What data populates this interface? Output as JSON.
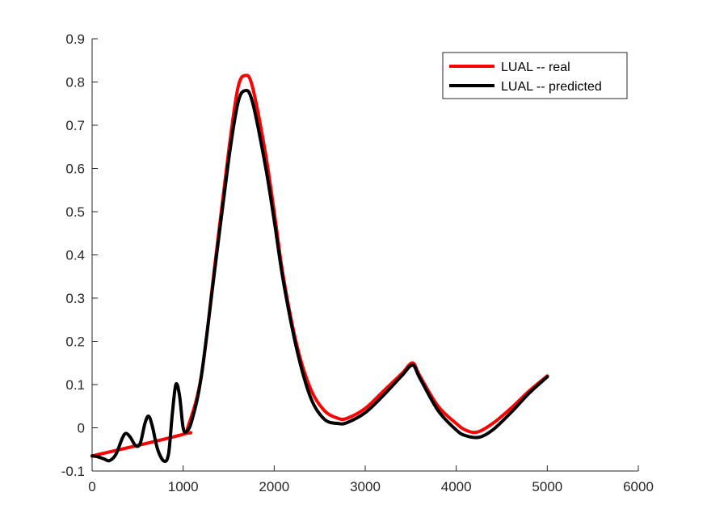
{
  "chart_data": {
    "type": "line",
    "title": "",
    "xlabel": "",
    "ylabel": "",
    "xlim": [
      0,
      6000
    ],
    "ylim": [
      -0.1,
      0.9
    ],
    "x_ticks": [
      "0",
      "1000",
      "2000",
      "3000",
      "4000",
      "5000",
      "6000"
    ],
    "y_ticks": [
      "-0.1",
      "0",
      "0.1",
      "0.2",
      "0.3",
      "0.4",
      "0.5",
      "0.6",
      "0.7",
      "0.8",
      "0.9"
    ],
    "grid": false,
    "legend_position": "top-right",
    "series": [
      {
        "name": "LUAL -- real",
        "color": "#ff0000",
        "points": [
          [
            0,
            -0.065
          ],
          [
            1000,
            -0.015
          ],
          [
            1050,
            0.0
          ],
          [
            1200,
            0.12
          ],
          [
            1350,
            0.38
          ],
          [
            1500,
            0.64
          ],
          [
            1600,
            0.785
          ],
          [
            1680,
            0.815
          ],
          [
            1760,
            0.79
          ],
          [
            1900,
            0.64
          ],
          [
            2000,
            0.5
          ],
          [
            2100,
            0.35
          ],
          [
            2250,
            0.19
          ],
          [
            2400,
            0.09
          ],
          [
            2550,
            0.04
          ],
          [
            2700,
            0.022
          ],
          [
            2800,
            0.022
          ],
          [
            3000,
            0.045
          ],
          [
            3200,
            0.085
          ],
          [
            3400,
            0.125
          ],
          [
            3520,
            0.15
          ],
          [
            3600,
            0.12
          ],
          [
            3800,
            0.05
          ],
          [
            4000,
            0.01
          ],
          [
            4100,
            -0.005
          ],
          [
            4230,
            -0.01
          ],
          [
            4400,
            0.01
          ],
          [
            4600,
            0.045
          ],
          [
            4800,
            0.085
          ],
          [
            5000,
            0.12
          ]
        ]
      },
      {
        "name": "LUAL -- predicted",
        "color": "#000000",
        "points": [
          [
            0,
            -0.065
          ],
          [
            60,
            -0.067
          ],
          [
            130,
            -0.072
          ],
          [
            190,
            -0.076
          ],
          [
            260,
            -0.062
          ],
          [
            330,
            -0.025
          ],
          [
            370,
            -0.013
          ],
          [
            420,
            -0.022
          ],
          [
            480,
            -0.042
          ],
          [
            530,
            -0.035
          ],
          [
            580,
            0.01
          ],
          [
            620,
            0.027
          ],
          [
            660,
            0.005
          ],
          [
            720,
            -0.05
          ],
          [
            790,
            -0.077
          ],
          [
            840,
            -0.06
          ],
          [
            880,
            0.03
          ],
          [
            920,
            0.1
          ],
          [
            960,
            0.075
          ],
          [
            1000,
            0.0
          ],
          [
            1040,
            -0.008
          ],
          [
            1100,
            0.02
          ],
          [
            1200,
            0.12
          ],
          [
            1350,
            0.37
          ],
          [
            1500,
            0.62
          ],
          [
            1600,
            0.75
          ],
          [
            1680,
            0.78
          ],
          [
            1760,
            0.755
          ],
          [
            1900,
            0.61
          ],
          [
            2000,
            0.48
          ],
          [
            2100,
            0.34
          ],
          [
            2250,
            0.18
          ],
          [
            2400,
            0.07
          ],
          [
            2550,
            0.02
          ],
          [
            2700,
            0.01
          ],
          [
            2800,
            0.012
          ],
          [
            3000,
            0.035
          ],
          [
            3200,
            0.075
          ],
          [
            3400,
            0.12
          ],
          [
            3520,
            0.145
          ],
          [
            3600,
            0.115
          ],
          [
            3800,
            0.04
          ],
          [
            4000,
            -0.005
          ],
          [
            4100,
            -0.018
          ],
          [
            4250,
            -0.022
          ],
          [
            4400,
            -0.005
          ],
          [
            4600,
            0.035
          ],
          [
            4800,
            0.08
          ],
          [
            5000,
            0.118
          ]
        ]
      }
    ]
  }
}
